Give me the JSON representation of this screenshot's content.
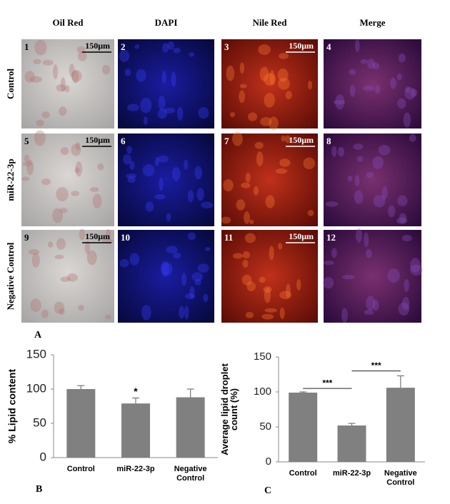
{
  "figure": {
    "column_headers": [
      "Oil Red",
      "DAPI",
      "Nile Red",
      "Merge"
    ],
    "row_labels": [
      "Control",
      "miR-22-3p",
      "Negative Control"
    ],
    "panel_numbers": [
      "1",
      "2",
      "3",
      "4",
      "5",
      "6",
      "7",
      "8",
      "9",
      "10",
      "11",
      "12"
    ],
    "scale_bar_label": "150μm",
    "panel_letter": "A"
  },
  "chart_data": [
    {
      "type": "bar",
      "panel_letter": "B",
      "ylabel": "% Lipid content",
      "categories": [
        "Control",
        "miR-22-3p",
        "Negative Control"
      ],
      "values": [
        100,
        79,
        88
      ],
      "errors": [
        5,
        8,
        12
      ],
      "color": "#808080",
      "ylim": [
        0,
        150
      ],
      "yticks": [
        0,
        50,
        100,
        150
      ],
      "annotation": "*"
    },
    {
      "type": "bar",
      "panel_letter": "C",
      "ylabel": "Average lipid droplet count (%)",
      "categories": [
        "Control",
        "miR-22-3p",
        "Negative Control"
      ],
      "values": [
        99,
        52,
        106
      ],
      "errors": [
        1,
        3,
        17
      ],
      "color": "#808080",
      "ylim": [
        0,
        150
      ],
      "yticks": [
        0,
        50,
        100,
        150
      ],
      "significance": [
        "***",
        "***"
      ]
    }
  ]
}
